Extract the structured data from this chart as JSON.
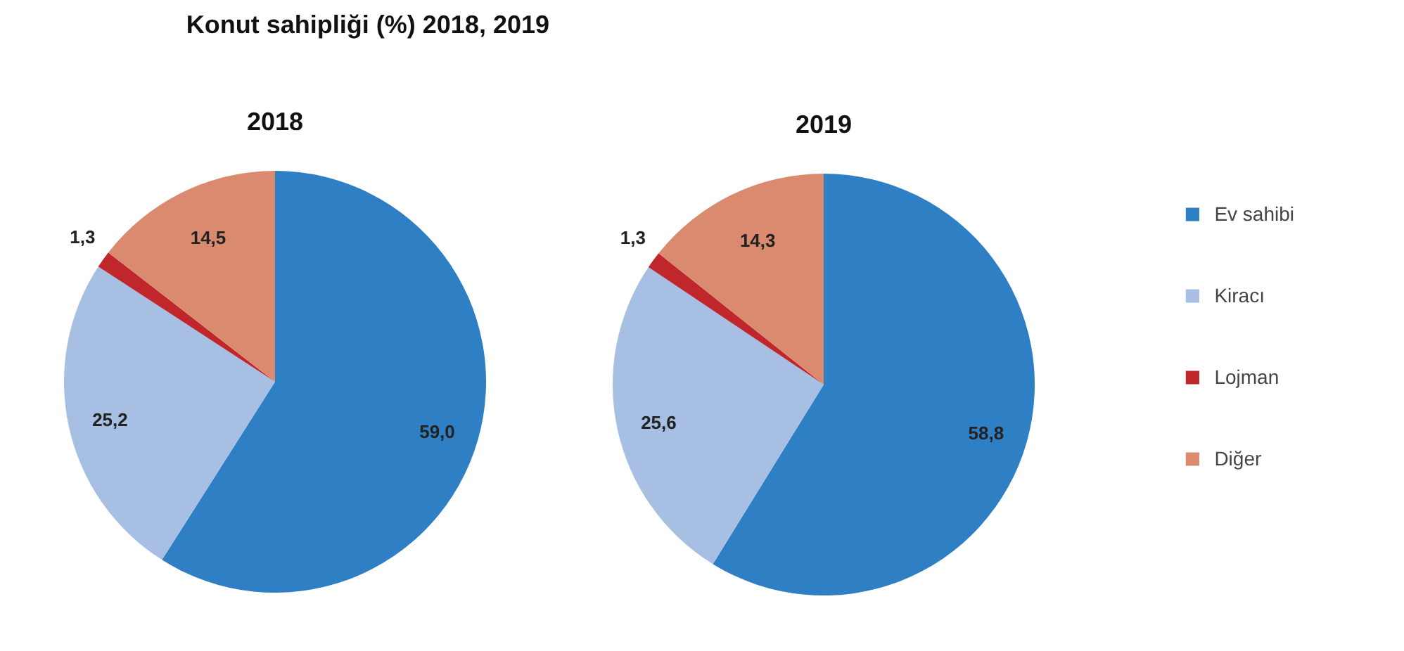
{
  "chart_data": [
    {
      "type": "pie",
      "title": "Konut sahipliği (%) 2018, 2019",
      "subtitle": "2018",
      "categories": [
        null,
        null,
        null,
        null
      ],
      "values": [
        59.0,
        25.2,
        1.3,
        14.5
      ],
      "value_labels": [
        "59,0",
        "25,2",
        "1,3",
        "14,5"
      ],
      "colors": [
        "#2e7fc4",
        "#a7bfe3",
        "#c0272d",
        "#d98a6f"
      ]
    },
    {
      "type": "pie",
      "title": "2019",
      "categories": [
        "Ev sahibi",
        "Kiracı",
        "Lojman",
        "Diğer"
      ],
      "values": [
        58.8,
        25.6,
        1.3,
        14.3
      ],
      "value_labels": [
        "58,8",
        "25,6",
        "1,3",
        "14,3"
      ],
      "colors": [
        "#2e7fc4",
        "#a7bfe3",
        "#c0272d",
        "#d98a6f"
      ],
      "legend": "right"
    }
  ]
}
